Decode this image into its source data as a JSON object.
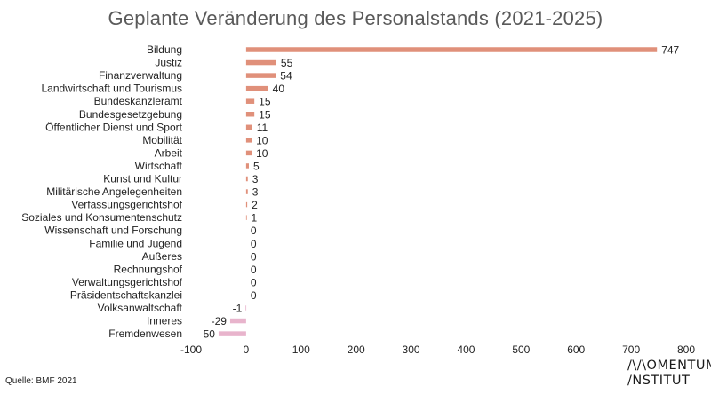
{
  "chart_data": {
    "type": "bar",
    "orientation": "horizontal",
    "title": "Geplante Veränderung des Personalstands (2021-2025)",
    "categories": [
      "Bildung",
      "Justiz",
      "Finanzverwaltung",
      "Landwirtschaft und Tourismus",
      "Bundeskanzleramt",
      "Bundesgesetzgebung",
      "Öffentlicher Dienst und Sport",
      "Mobilität",
      "Arbeit",
      "Wirtschaft",
      "Kunst und Kultur",
      "Militärische Angelegenheiten",
      "Verfassungsgerichtshof",
      "Soziales und Konsumentenschutz",
      "Wissenschaft und Forschung",
      "Familie und Jugend",
      "Außeres",
      "Rechnungshof",
      "Verwaltungsgerichtshof",
      "Präsidentschaftskanzlei",
      "Volksanwaltschaft",
      "Inneres",
      "Fremdenwesen"
    ],
    "values": [
      747,
      55,
      54,
      40,
      15,
      15,
      11,
      10,
      10,
      5,
      3,
      3,
      2,
      1,
      0,
      0,
      0,
      0,
      0,
      0,
      -1,
      -29,
      -50
    ],
    "xlim": [
      -100,
      800
    ],
    "xticks": [
      -100,
      0,
      100,
      200,
      300,
      400,
      500,
      600,
      700,
      800
    ],
    "grid": false,
    "colors": {
      "positive": "#e0907a",
      "negative": "#e8b4cc",
      "title": "#5a5a5a"
    }
  },
  "source": "Quelle: BMF 2021",
  "logo": {
    "line1": "/\\/\\OMENTUM",
    "line2": "/NSTITUT"
  }
}
